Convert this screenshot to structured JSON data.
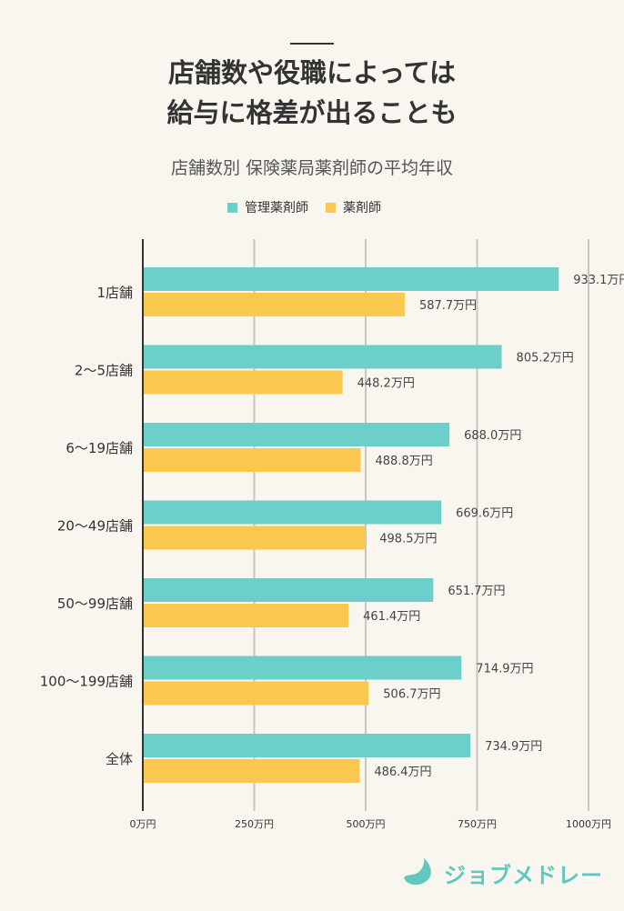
{
  "header": {
    "headline_line1": "店舗数や役職によっては",
    "headline_line2": "給与に格差が出ることも"
  },
  "brand": {
    "name": "ジョブメドレー",
    "color": "#5fc9bf"
  },
  "chart_data": {
    "type": "bar",
    "orientation": "horizontal",
    "title": "店舗数別 保険薬局薬剤師の平均年収",
    "categories": [
      "1店舗",
      "2〜5店舗",
      "6〜19店舗",
      "20〜49店舗",
      "50〜99店舗",
      "100〜199店舗",
      "全体"
    ],
    "series": [
      {
        "name": "管理薬剤師",
        "color": "#6dcfc9",
        "values": [
          933.1,
          805.2,
          688.0,
          669.6,
          651.7,
          714.9,
          734.9
        ]
      },
      {
        "name": "薬剤師",
        "color": "#fbc84f",
        "values": [
          587.7,
          448.2,
          488.8,
          498.5,
          461.4,
          506.7,
          486.4
        ]
      }
    ],
    "value_unit": "万円",
    "xlim": [
      0,
      1000
    ],
    "x_ticks": [
      0,
      250,
      500,
      750,
      1000
    ],
    "x_tick_labels": [
      "0万円",
      "250万円",
      "500万円",
      "750万円",
      "1000万円"
    ],
    "legend_position": "top",
    "grid": true
  }
}
